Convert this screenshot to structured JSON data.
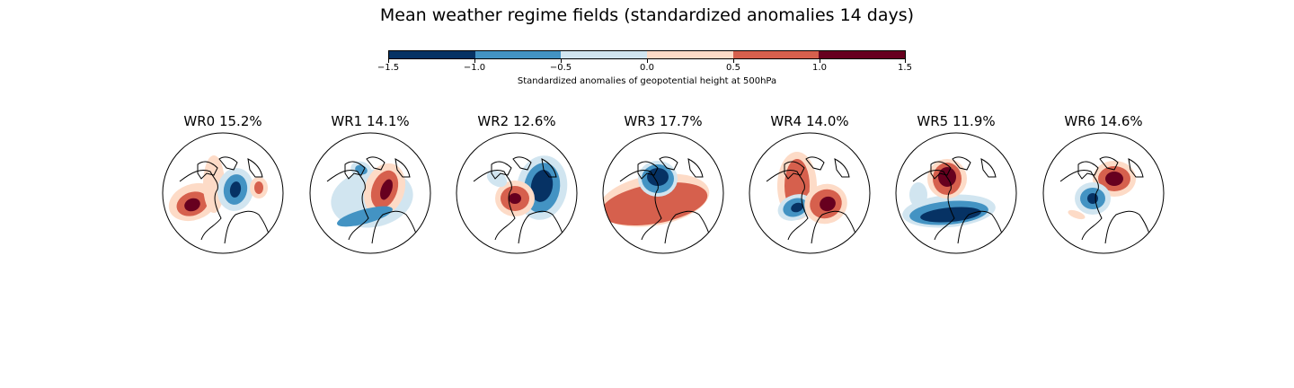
{
  "title": "Mean weather regime fields (standardized anomalies 14 days)",
  "colorbar": {
    "label": "Standardized anomalies of geopotential height at 500hPa",
    "ticks": [
      "−1.5",
      "−1.0",
      "−0.5",
      "0.0",
      "0.5",
      "1.0",
      "1.5"
    ],
    "colors": [
      "#063264",
      "#4393c3",
      "#d1e5f0",
      "#fddbc7",
      "#d6604d",
      "#67001f"
    ]
  },
  "chart_data": {
    "type": "heatmap",
    "title": "Mean weather regime fields (standardized anomalies 14 days)",
    "colorbar_label": "Standardized anomalies of geopotential height at 500hPa",
    "colorbar_range": [
      -1.5,
      1.5
    ],
    "levels": [
      -1.5,
      -1.0,
      -0.5,
      0.0,
      0.5,
      1.0,
      1.5
    ],
    "panels": [
      {
        "name": "WR0",
        "pct": "15.2%"
      },
      {
        "name": "WR1",
        "pct": "14.1%"
      },
      {
        "name": "WR2",
        "pct": "12.6%"
      },
      {
        "name": "WR3",
        "pct": "17.7%"
      },
      {
        "name": "WR4",
        "pct": "14.0%"
      },
      {
        "name": "WR5",
        "pct": "11.9%"
      },
      {
        "name": "WR6",
        "pct": "14.6%"
      }
    ]
  }
}
